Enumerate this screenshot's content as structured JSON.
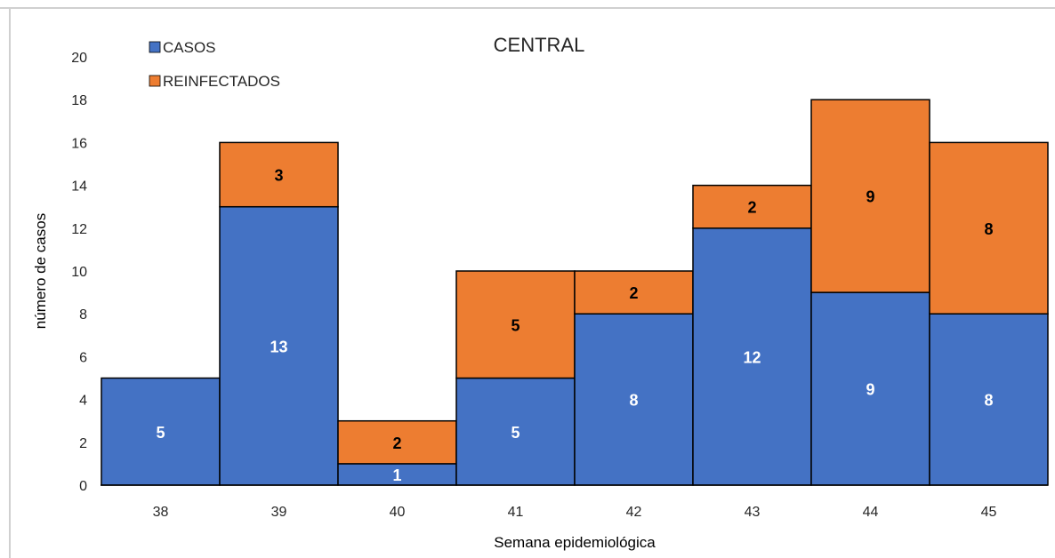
{
  "chart_data": {
    "type": "bar",
    "stacked": true,
    "title": "CENTRAL",
    "xlabel": "Semana epidemiológica",
    "ylabel": "número de casos",
    "categories": [
      "38",
      "39",
      "40",
      "41",
      "42",
      "43",
      "44",
      "45"
    ],
    "ylim": [
      0,
      20
    ],
    "yticks": [
      "0",
      "2",
      "4",
      "6",
      "8",
      "10",
      "12",
      "14",
      "16",
      "18",
      "20"
    ],
    "grid": false,
    "legend_position": "top-left",
    "series": [
      {
        "name": "CASOS",
        "color": "#4472C4",
        "label_color": "#ffffff",
        "values": [
          5,
          13,
          1,
          5,
          8,
          12,
          9,
          8
        ]
      },
      {
        "name": "REINFECTADOS",
        "color": "#ED7D31",
        "label_color": "#000000",
        "values": [
          0,
          3,
          2,
          5,
          2,
          2,
          9,
          8
        ]
      }
    ]
  }
}
